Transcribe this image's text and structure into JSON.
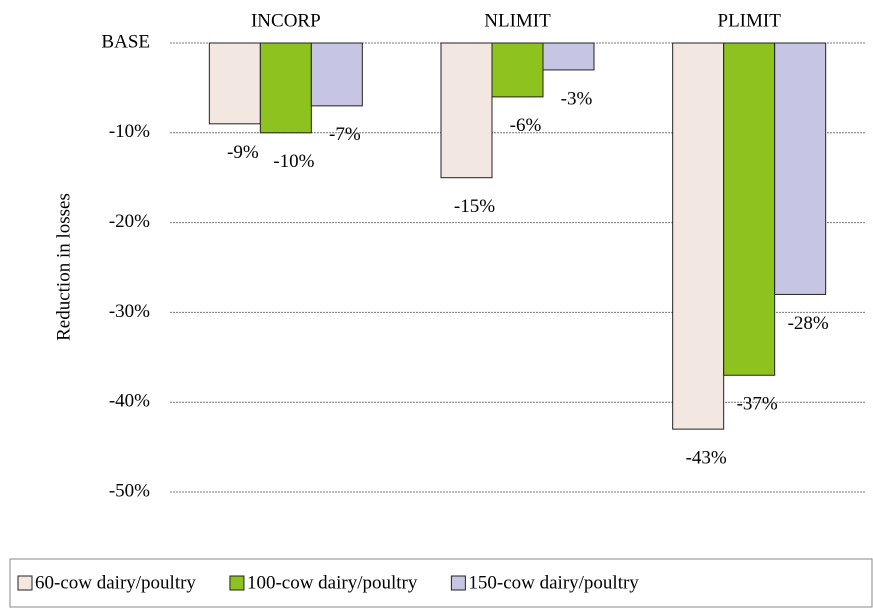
{
  "chart_data": {
    "type": "bar",
    "y_label": "Reduction in losses",
    "categories": [
      "INCORP",
      "NLIMIT",
      "PLIMIT"
    ],
    "series": [
      {
        "name": "60-cow dairy/poultry",
        "color": "#f3e7e1",
        "values": [
          -9,
          -15,
          -43
        ],
        "value_labels": [
          "-9%",
          "-15%",
          "-43%"
        ]
      },
      {
        "name": "100-cow dairy/poultry",
        "color": "#8dc21f",
        "values": [
          -10,
          -6,
          -37
        ],
        "value_labels": [
          "-10%",
          "-6%",
          "-37%"
        ]
      },
      {
        "name": "150-cow dairy/poultry",
        "color": "#c6c6e4",
        "values": [
          -7,
          -3,
          -28
        ],
        "value_labels": [
          "-7%",
          "-3%",
          "-28%"
        ]
      }
    ],
    "ylim": [
      -50,
      0
    ],
    "yticks": [
      {
        "value": 0,
        "label": "BASE"
      },
      {
        "value": -10,
        "label": "-10%"
      },
      {
        "value": -20,
        "label": "-20%"
      },
      {
        "value": -30,
        "label": "-30%"
      },
      {
        "value": -40,
        "label": "-40%"
      },
      {
        "value": -50,
        "label": "-50%"
      }
    ],
    "grid": true,
    "legend": "bottom"
  }
}
